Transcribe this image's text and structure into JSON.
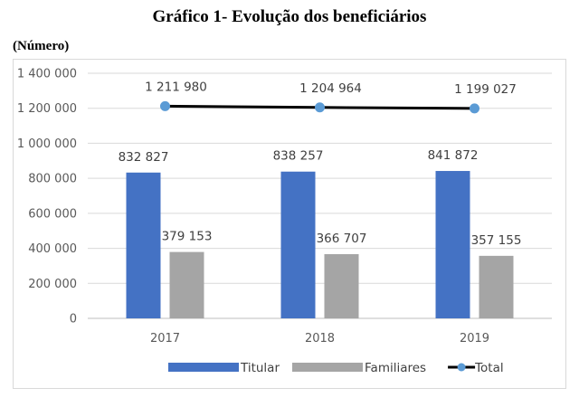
{
  "chart_data": {
    "type": "bar",
    "title": "Gráfico 1- Evolução dos beneficiários",
    "unit_label": "(Número)",
    "categories": [
      "2017",
      "2018",
      "2019"
    ],
    "series": [
      {
        "name": "Titular",
        "kind": "bar",
        "color": "#4472c4",
        "values": [
          832827,
          838257,
          841872
        ],
        "labels": [
          "832 827",
          "838 257",
          "841 872"
        ]
      },
      {
        "name": "Familiares",
        "kind": "bar",
        "color": "#a5a5a5",
        "values": [
          379153,
          366707,
          357155
        ],
        "labels": [
          "379 153",
          "366 707",
          "357 155"
        ]
      },
      {
        "name": "Total",
        "kind": "line",
        "color": "#000000",
        "marker_color": "#5b9bd5",
        "values": [
          1211980,
          1204964,
          1199027
        ],
        "labels": [
          "1 211 980",
          "1 204 964",
          "1 199 027"
        ]
      }
    ],
    "ylim": [
      0,
      1400000
    ],
    "yticks": [
      0,
      200000,
      400000,
      600000,
      800000,
      1000000,
      1200000,
      1400000
    ],
    "ytick_labels": [
      "0",
      "200 000",
      "400 000",
      "600 000",
      "800 000",
      "1 000 000",
      "1 200 000",
      "1 400 000"
    ],
    "grid": true,
    "legend_position": "bottom"
  }
}
